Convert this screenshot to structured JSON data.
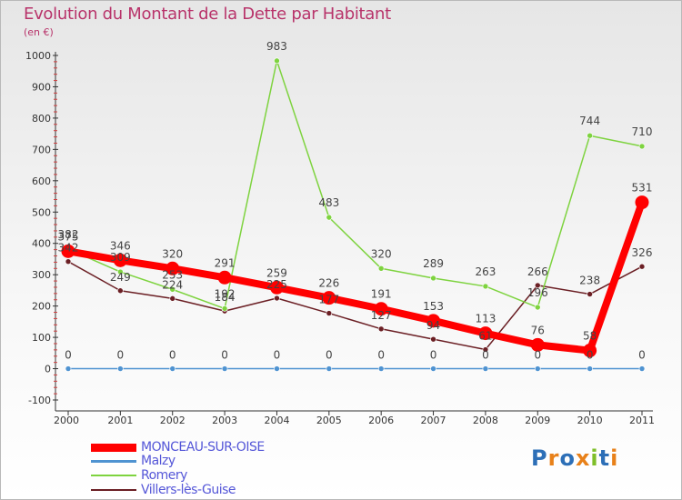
{
  "chart_data": {
    "type": "line",
    "title": "Evolution du Montant de la Dette par Habitant",
    "subtitle": "(en €)",
    "xlabel": "",
    "ylabel": "",
    "categories": [
      "2000",
      "2001",
      "2002",
      "2003",
      "2004",
      "2005",
      "2006",
      "2007",
      "2008",
      "2009",
      "2010",
      "2011"
    ],
    "ylim": [
      -100,
      1000
    ],
    "yticks": [
      -100,
      0,
      100,
      200,
      300,
      400,
      500,
      600,
      700,
      800,
      900,
      1000
    ],
    "grid": false,
    "legend_position": "bottom-left",
    "series": [
      {
        "name": "MONCEAU-SUR-OISE",
        "color": "#ff0000",
        "values": [
          375,
          346,
          320,
          291,
          259,
          226,
          191,
          153,
          113,
          76,
          58,
          531
        ]
      },
      {
        "name": "Malzy",
        "color": "#4f93d1",
        "values": [
          0,
          0,
          0,
          0,
          0,
          0,
          0,
          0,
          0,
          0,
          0,
          0
        ]
      },
      {
        "name": "Romery",
        "color": "#7ed33f",
        "values": [
          382,
          309,
          253,
          192,
          983,
          483,
          320,
          289,
          263,
          196,
          744,
          710
        ]
      },
      {
        "name": "Villers-lès-Guise",
        "color": "#6b1f24",
        "values": [
          342,
          249,
          224,
          184,
          225,
          177,
          127,
          94,
          61,
          266,
          238,
          326
        ]
      }
    ]
  },
  "logo": {
    "text": "Proxiti",
    "colors": [
      "#2d6fb7",
      "#e8811a",
      "#2d6fb7",
      "#e8811a",
      "#7fbf2a",
      "#2d6fb7",
      "#e8811a"
    ]
  }
}
